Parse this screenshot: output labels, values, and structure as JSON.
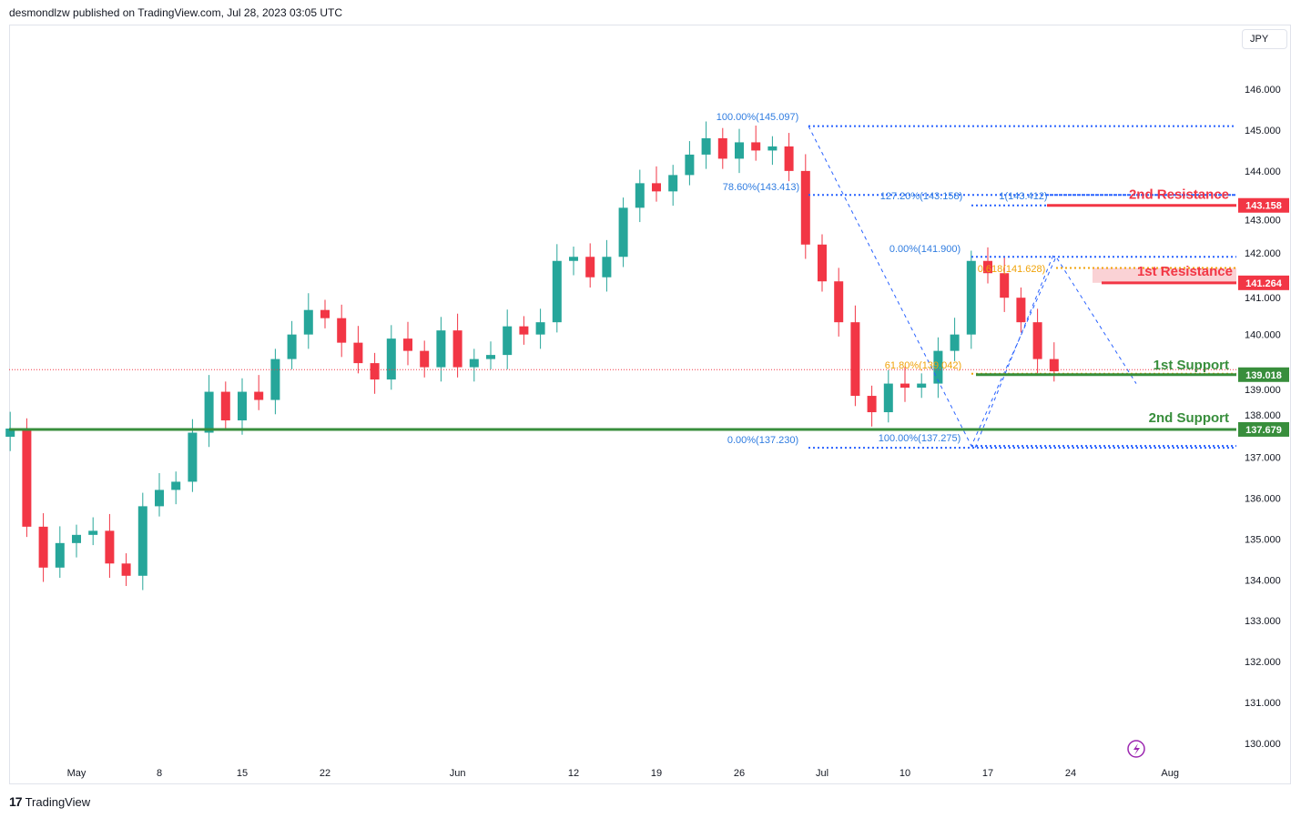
{
  "header": {
    "publisher_text": "desmondlzw published on TradingView.com, Jul 28, 2023 03:05 UTC"
  },
  "currency_button": "JPY",
  "footer": {
    "logo_text": "TradingView"
  },
  "colors": {
    "up": "#26a69a",
    "down": "#f23645",
    "resistance": "#f23645",
    "support": "#388e3c",
    "fib": "#2962ff",
    "fib_label": "#2f7ce0",
    "fib_orange": "#f0a30a",
    "zone": "#f9c7ca"
  },
  "chart_data": {
    "type": "candlestick",
    "title": "",
    "y_range": [
      129.6,
      146.6
    ],
    "y_ticks": [
      "146.000",
      "145.000",
      "144.000",
      "143.000",
      "142.000",
      "141.000",
      "140.000",
      "139.000",
      "138.000",
      "137.000",
      "136.000",
      "135.000",
      "134.000",
      "133.000",
      "132.000",
      "131.000",
      "130.000"
    ],
    "x_ticks": [
      {
        "label": "May",
        "date": "2023-05-01"
      },
      {
        "label": "8",
        "date": "2023-05-08"
      },
      {
        "label": "15",
        "date": "2023-05-15"
      },
      {
        "label": "22",
        "date": "2023-05-22"
      },
      {
        "label": "Jun",
        "date": "2023-06-01"
      },
      {
        "label": "12",
        "date": "2023-06-12"
      },
      {
        "label": "19",
        "date": "2023-06-19"
      },
      {
        "label": "26",
        "date": "2023-06-26"
      },
      {
        "label": "Jul",
        "date": "2023-07-03"
      },
      {
        "label": "10",
        "date": "2023-07-10"
      },
      {
        "label": "17",
        "date": "2023-07-17"
      },
      {
        "label": "24",
        "date": "2023-07-24"
      },
      {
        "label": "Aug",
        "date": "2023-08-01"
      }
    ],
    "first_date": "2023-04-25",
    "closes": [
      134.2,
      133.6,
      133.9,
      136.3,
      137.5,
      137.7,
      135.3,
      134.3,
      134.9,
      135.1,
      135.2,
      134.4,
      134.1,
      135.8,
      136.2,
      136.4,
      137.6,
      138.6,
      137.9,
      138.6,
      138.4,
      139.4,
      140.0,
      140.6,
      140.4,
      139.8,
      139.3,
      138.9,
      139.9,
      139.6,
      139.2,
      140.1,
      139.2,
      139.4,
      139.5,
      140.2,
      140.0,
      140.3,
      141.8,
      141.9,
      141.4,
      141.9,
      143.1,
      143.7,
      143.5,
      143.9,
      144.4,
      144.8,
      144.3,
      144.7,
      144.5,
      144.6,
      144.0,
      142.2,
      141.3,
      140.3,
      138.5,
      138.1,
      138.8,
      138.7,
      138.8,
      139.6,
      140.0,
      141.8,
      141.5,
      140.9,
      140.3,
      139.4,
      139.1
    ],
    "last_price": 139.14,
    "levels": [
      {
        "name": "2nd Resistance",
        "value": "143.158",
        "kind": "resistance"
      },
      {
        "name": "1st Resistance",
        "value": "141.264",
        "kind": "resistance"
      },
      {
        "name": "1st Support",
        "value": "139.018",
        "kind": "support"
      },
      {
        "name": "2nd Support",
        "value": "137.679",
        "kind": "support"
      }
    ],
    "fib_labels": [
      {
        "text": "100.00%(145.097)",
        "price": 145.097
      },
      {
        "text": "78.60%(143.413)",
        "price": 143.413
      },
      {
        "text": "127.20%(143.158)",
        "price": 143.158
      },
      {
        "text": "1(143.412)",
        "price": 143.412
      },
      {
        "text": "0.00%(141.900)",
        "price": 141.9
      },
      {
        "text": "0.618(141.628)",
        "price": 141.628
      },
      {
        "text": "61.80%(139.042)",
        "price": 139.042
      },
      {
        "text": "0.00%(137.230)",
        "price": 137.23
      },
      {
        "text": "100.00%(137.275)",
        "price": 137.275
      }
    ],
    "resistance_zone": [
      141.264,
      141.628
    ],
    "grid": false
  }
}
